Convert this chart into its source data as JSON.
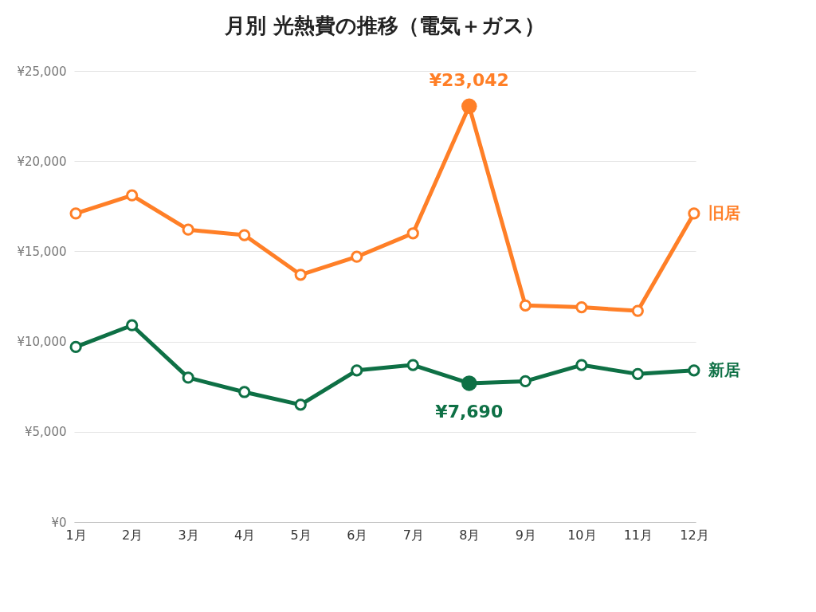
{
  "chart_data": {
    "type": "line",
    "title": "月別 光熱費の推移（電気＋ガス）",
    "categories": [
      "1月",
      "2月",
      "3月",
      "4月",
      "5月",
      "6月",
      "7月",
      "8月",
      "9月",
      "10月",
      "11月",
      "12月"
    ],
    "series": [
      {
        "name": "旧居",
        "color": "#ff7f27",
        "values": [
          17100,
          18100,
          16200,
          15900,
          13700,
          14700,
          16000,
          23042,
          12000,
          11900,
          11700,
          17100
        ]
      },
      {
        "name": "新居",
        "color": "#0e7045",
        "values": [
          9700,
          10900,
          8000,
          7200,
          6500,
          8400,
          8700,
          7690,
          7800,
          8700,
          8200,
          8400
        ]
      }
    ],
    "ylim": [
      0,
      25000
    ],
    "yticks": [
      {
        "value": 0,
        "label": "¥0"
      },
      {
        "value": 5000,
        "label": "¥5,000"
      },
      {
        "value": 10000,
        "label": "¥10,000"
      },
      {
        "value": 15000,
        "label": "¥15,000"
      },
      {
        "value": 20000,
        "label": "¥20,000"
      },
      {
        "value": 25000,
        "label": "¥25,000"
      }
    ],
    "grid": "y",
    "legend": false,
    "marker": "circle",
    "line_style": "solid",
    "annotations": [
      {
        "text": "¥23,042",
        "x": "8月",
        "y": 23042
      },
      {
        "text": "¥7,690",
        "x": "8月",
        "y": 7690
      }
    ]
  }
}
